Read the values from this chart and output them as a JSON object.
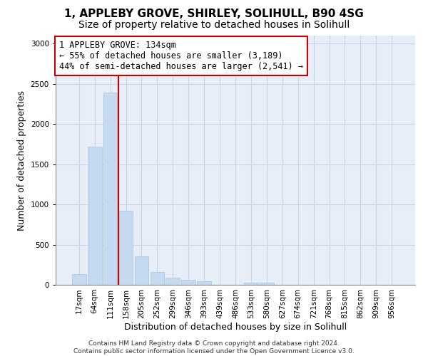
{
  "title_line1": "1, APPLEBY GROVE, SHIRLEY, SOLIHULL, B90 4SG",
  "title_line2": "Size of property relative to detached houses in Solihull",
  "xlabel": "Distribution of detached houses by size in Solihull",
  "ylabel": "Number of detached properties",
  "categories": [
    "17sqm",
    "64sqm",
    "111sqm",
    "158sqm",
    "205sqm",
    "252sqm",
    "299sqm",
    "346sqm",
    "393sqm",
    "439sqm",
    "486sqm",
    "533sqm",
    "580sqm",
    "627sqm",
    "674sqm",
    "721sqm",
    "768sqm",
    "815sqm",
    "862sqm",
    "909sqm",
    "956sqm"
  ],
  "values": [
    130,
    1720,
    2390,
    920,
    350,
    160,
    90,
    60,
    40,
    0,
    0,
    30,
    30,
    0,
    0,
    0,
    0,
    0,
    0,
    0,
    0
  ],
  "bar_color": "#c5d9f0",
  "bar_edge_color": "#aac4e0",
  "grid_color": "#c8d4e8",
  "bg_color": "#e8eef8",
  "property_line_color": "#cc0000",
  "annotation_text": "1 APPLEBY GROVE: 134sqm\n← 55% of detached houses are smaller (3,189)\n44% of semi-detached houses are larger (2,541) →",
  "annotation_box_color": "#cc0000",
  "ylim": [
    0,
    3100
  ],
  "yticks": [
    0,
    500,
    1000,
    1500,
    2000,
    2500,
    3000
  ],
  "footnote": "Contains HM Land Registry data © Crown copyright and database right 2024.\nContains public sector information licensed under the Open Government Licence v3.0.",
  "title_fontsize": 11,
  "subtitle_fontsize": 10,
  "axis_label_fontsize": 9,
  "tick_fontsize": 7.5,
  "annotation_fontsize": 8.5,
  "footnote_fontsize": 6.5
}
